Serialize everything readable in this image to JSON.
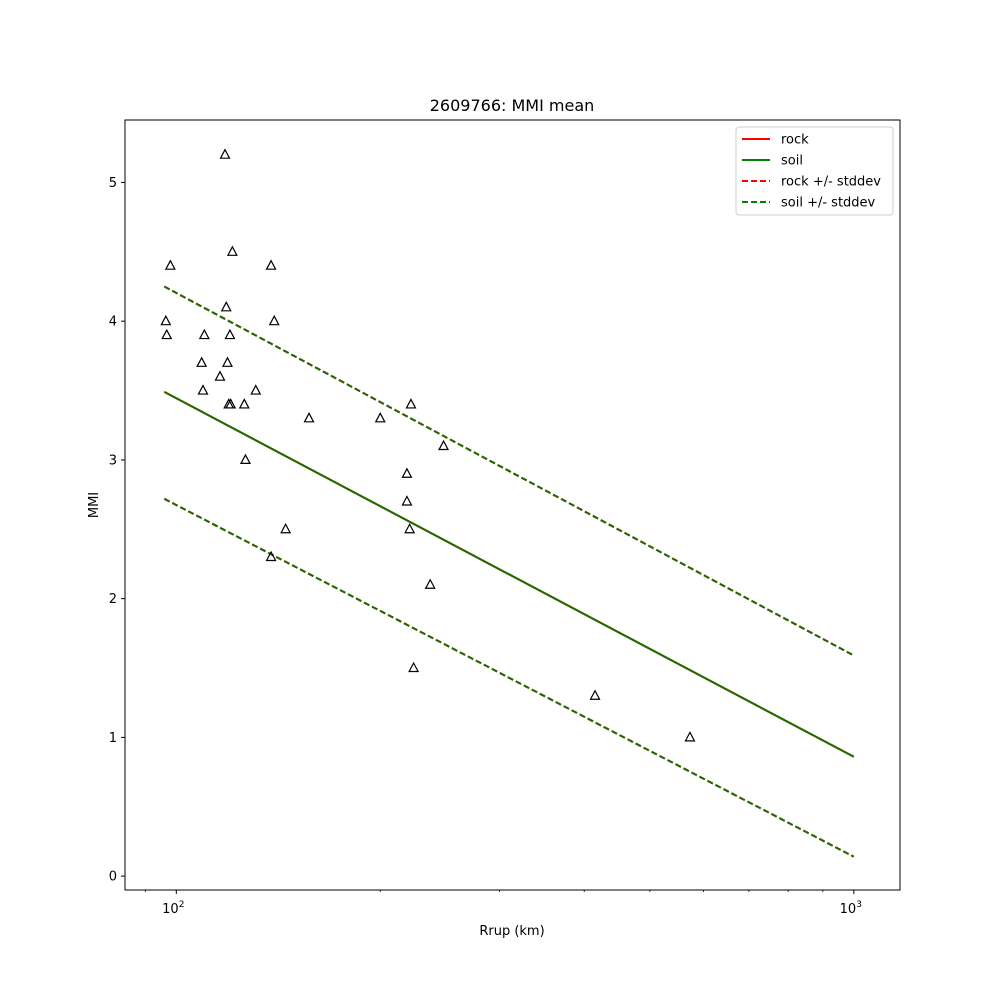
{
  "chart_data": {
    "type": "scatter",
    "title": "2609766: MMI mean",
    "xlabel": "Rrup (km)",
    "ylabel": "MMI",
    "xscale": "log",
    "xlim": [
      84,
      1170
    ],
    "ylim": [
      -0.1,
      5.45
    ],
    "xticks": [
      {
        "value": 100,
        "base": "10",
        "exp": "2"
      },
      {
        "value": 1000,
        "base": "10",
        "exp": "3"
      }
    ],
    "yticks": [
      0,
      1,
      2,
      3,
      4,
      5
    ],
    "grid": false,
    "legend": {
      "position": "top-right",
      "entries": [
        {
          "label": "rock",
          "color": "#ff0000",
          "style": "solid"
        },
        {
          "label": "soil",
          "color": "#008000",
          "style": "solid"
        },
        {
          "label": "rock +/- stddev",
          "color": "#ff0000",
          "style": "dashed"
        },
        {
          "label": "soil +/- stddev",
          "color": "#008000",
          "style": "dashed"
        }
      ]
    },
    "lines": [
      {
        "name": "rock",
        "color": "#ff0000",
        "style": "solid",
        "x": [
          96,
          1000
        ],
        "y": [
          3.49,
          0.86
        ]
      },
      {
        "name": "rock_upper",
        "color": "#ff0000",
        "style": "dashed",
        "x": [
          96,
          1000
        ],
        "y": [
          4.25,
          1.59
        ]
      },
      {
        "name": "rock_lower",
        "color": "#ff0000",
        "style": "dashed",
        "x": [
          96,
          1000
        ],
        "y": [
          2.72,
          0.14
        ]
      },
      {
        "name": "soil",
        "color": "#1a6e00",
        "style": "solid",
        "x": [
          96,
          1000
        ],
        "y": [
          3.49,
          0.86
        ]
      },
      {
        "name": "soil_upper",
        "color": "#1a6e00",
        "style": "dashed",
        "x": [
          96,
          1000
        ],
        "y": [
          4.25,
          1.59
        ]
      },
      {
        "name": "soil_lower",
        "color": "#1a6e00",
        "style": "dashed",
        "x": [
          96,
          1000
        ],
        "y": [
          2.72,
          0.14
        ]
      }
    ],
    "points": [
      {
        "x": 98,
        "y": 4.4
      },
      {
        "x": 96.5,
        "y": 4.0
      },
      {
        "x": 96.8,
        "y": 3.9
      },
      {
        "x": 118,
        "y": 5.2
      },
      {
        "x": 121,
        "y": 4.5
      },
      {
        "x": 138,
        "y": 4.4
      },
      {
        "x": 118.5,
        "y": 4.1
      },
      {
        "x": 139.5,
        "y": 4.0
      },
      {
        "x": 110,
        "y": 3.9
      },
      {
        "x": 120,
        "y": 3.9
      },
      {
        "x": 109,
        "y": 3.7
      },
      {
        "x": 119,
        "y": 3.7
      },
      {
        "x": 116,
        "y": 3.6
      },
      {
        "x": 109.5,
        "y": 3.5
      },
      {
        "x": 131,
        "y": 3.5
      },
      {
        "x": 119.5,
        "y": 3.4
      },
      {
        "x": 120.3,
        "y": 3.4
      },
      {
        "x": 126,
        "y": 3.4
      },
      {
        "x": 157,
        "y": 3.3
      },
      {
        "x": 200,
        "y": 3.3
      },
      {
        "x": 222,
        "y": 3.4
      },
      {
        "x": 248,
        "y": 3.1
      },
      {
        "x": 126.5,
        "y": 3.0
      },
      {
        "x": 219,
        "y": 2.9
      },
      {
        "x": 219,
        "y": 2.7
      },
      {
        "x": 145,
        "y": 2.5
      },
      {
        "x": 221,
        "y": 2.5
      },
      {
        "x": 138,
        "y": 2.3
      },
      {
        "x": 237,
        "y": 2.1
      },
      {
        "x": 224,
        "y": 1.5
      },
      {
        "x": 415,
        "y": 1.3
      },
      {
        "x": 573,
        "y": 1.0
      }
    ]
  }
}
